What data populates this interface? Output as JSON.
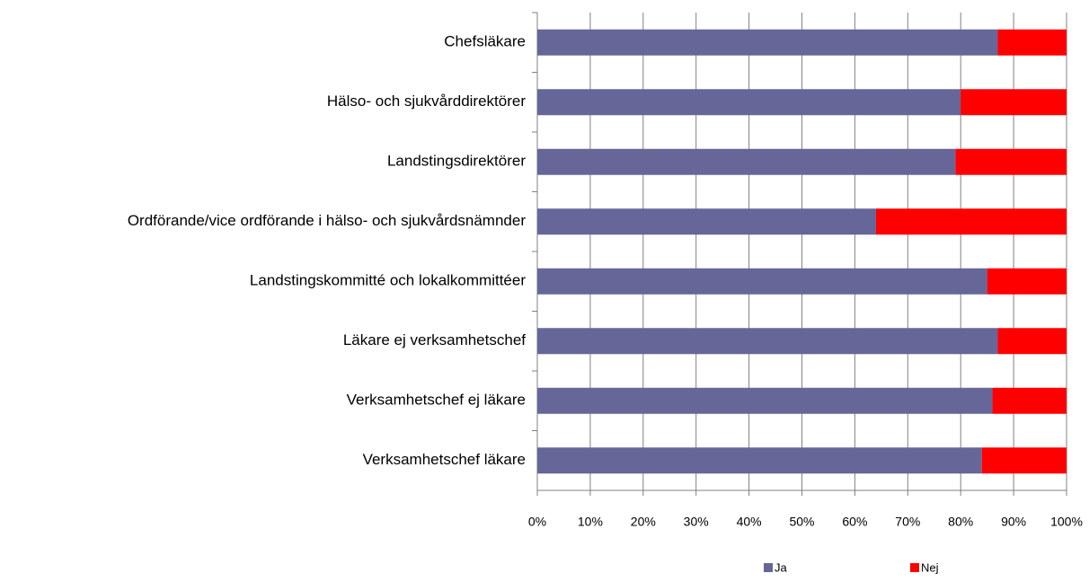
{
  "chart_data": {
    "type": "stacked_barh",
    "categories": [
      "Chefsläkare",
      "Hälso- och sjukvårddirektörer",
      "Landstingsdirektörer",
      "Ordförande/vice ordförande i hälso- och sjukvårdsnämnder",
      "Landstingskommitté och lokalkommittéer",
      "Läkare ej verksamhetschef",
      "Verksamhetschef ej läkare",
      "Verksamhetschef läkare"
    ],
    "series": [
      {
        "name": "Ja",
        "color": "#666699",
        "values": [
          87,
          80,
          79,
          64,
          85,
          87,
          86,
          84
        ]
      },
      {
        "name": "Nej",
        "color": "#ff0000",
        "values": [
          13,
          20,
          21,
          36,
          15,
          13,
          14,
          16
        ]
      }
    ],
    "xlim": [
      0,
      100
    ],
    "xticks": [
      {
        "value": 0,
        "label": "0%"
      },
      {
        "value": 10,
        "label": "10%"
      },
      {
        "value": 20,
        "label": "20%"
      },
      {
        "value": 30,
        "label": "30%"
      },
      {
        "value": 40,
        "label": "40%"
      },
      {
        "value": 50,
        "label": "50%"
      },
      {
        "value": 60,
        "label": "60%"
      },
      {
        "value": 70,
        "label": "70%"
      },
      {
        "value": 80,
        "label": "80%"
      },
      {
        "value": 90,
        "label": "90%"
      },
      {
        "value": 100,
        "label": "100%"
      }
    ],
    "grid": true,
    "legend": "bottom"
  }
}
